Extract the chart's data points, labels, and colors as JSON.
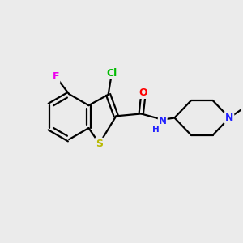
{
  "bg_color": "#ebebeb",
  "atom_colors": {
    "S": "#b8b800",
    "N": "#2020ff",
    "O": "#ff0000",
    "F": "#ee00ee",
    "Cl": "#00bb00",
    "C": "#000000"
  },
  "bond_color": "#000000",
  "bond_lw": 1.6
}
